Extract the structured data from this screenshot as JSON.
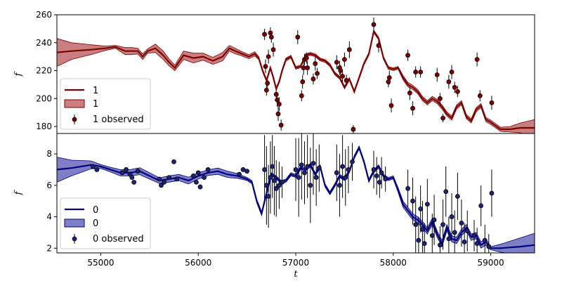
{
  "chart_data": [
    {
      "type": "line",
      "xlabel": "",
      "ylabel": "f",
      "xlim": [
        54550,
        59450
      ],
      "ylim": [
        175,
        260
      ],
      "y_ticks": [
        180,
        200,
        220,
        240,
        260
      ],
      "line_color": "#800000",
      "band_color": "#a52a2a",
      "point_color": "#800000",
      "legend": {
        "position": "lower-left",
        "line": "1",
        "band": "1",
        "points": "1 observed"
      },
      "series_model": {
        "name": "1",
        "x": [
          54550,
          54700,
          54900,
          55050,
          55150,
          55250,
          55320,
          55380,
          55430,
          55480,
          55560,
          55640,
          55700,
          55760,
          55850,
          55950,
          56050,
          56150,
          56250,
          56320,
          56380,
          56450,
          56520,
          56580,
          56620,
          56660,
          56700,
          56740,
          56770,
          56800,
          56830,
          56860,
          56900,
          56950,
          57000,
          57050,
          57100,
          57150,
          57200,
          57250,
          57300,
          57350,
          57400,
          57450,
          57500,
          57550,
          57600,
          57650,
          57700,
          57750,
          57800,
          57850,
          57900,
          57950,
          58000,
          58050,
          58100,
          58150,
          58200,
          58250,
          58300,
          58350,
          58400,
          58450,
          58500,
          58550,
          58600,
          58650,
          58700,
          58750,
          58800,
          58850,
          58900,
          58950,
          59000,
          59100,
          59200,
          59300,
          59450
        ],
        "y": [
          233,
          234,
          235,
          236,
          237,
          234,
          234,
          234,
          230,
          234,
          236,
          231,
          226,
          222,
          231,
          229,
          230,
          227,
          230,
          236,
          234,
          232,
          230,
          232,
          229,
          220,
          213,
          222,
          215,
          207,
          212,
          220,
          228,
          230,
          222,
          223,
          231,
          232,
          231,
          228,
          227,
          224,
          218,
          215,
          208,
          214,
          205,
          215,
          225,
          232,
          248,
          243,
          229,
          222,
          221,
          222,
          215,
          210,
          208,
          205,
          200,
          197,
          200,
          198,
          194,
          189,
          186,
          194,
          197,
          187,
          184,
          192,
          195,
          185,
          183,
          178,
          178,
          179,
          179
        ]
      },
      "band_halfwidth": [
        10,
        6,
        3.5,
        1.5,
        1,
        2.5,
        2.5,
        2,
        2,
        1.5,
        3,
        3,
        2.5,
        2,
        3,
        3.5,
        2.5,
        2.5,
        3,
        2,
        2,
        1.5,
        1.5,
        1.5,
        1,
        1,
        1,
        1,
        1,
        1,
        1,
        1,
        1,
        1,
        1,
        1,
        1,
        1,
        1,
        1,
        1,
        1,
        1,
        1,
        1,
        1,
        1,
        1,
        1,
        1,
        1,
        1,
        1,
        1,
        1,
        1,
        1.5,
        1.5,
        1.5,
        1.5,
        1.5,
        1.5,
        1.5,
        1.5,
        1.5,
        1.5,
        1.5,
        1.5,
        1.5,
        1.5,
        1.5,
        1.5,
        1.5,
        1.5,
        1.5,
        1.5,
        2,
        3.5,
        6
      ],
      "series_observed": {
        "name": "1 observed",
        "points": [
          [
            56680,
            246,
            4
          ],
          [
            56690,
            223,
            5
          ],
          [
            56700,
            206,
            4
          ],
          [
            56710,
            211,
            5
          ],
          [
            56720,
            230,
            5
          ],
          [
            56740,
            247,
            4
          ],
          [
            56750,
            244,
            4
          ],
          [
            56770,
            235,
            5
          ],
          [
            56800,
            203,
            4
          ],
          [
            56810,
            199,
            5
          ],
          [
            56820,
            189,
            5
          ],
          [
            56830,
            196,
            5
          ],
          [
            56850,
            181,
            4
          ],
          [
            57020,
            244,
            5
          ],
          [
            57060,
            202,
            4
          ],
          [
            57070,
            212,
            5
          ],
          [
            57080,
            222,
            5
          ],
          [
            57090,
            228,
            4
          ],
          [
            57110,
            229,
            4
          ],
          [
            57120,
            222,
            5
          ],
          [
            57180,
            214,
            4
          ],
          [
            57200,
            225,
            5
          ],
          [
            57220,
            218,
            4
          ],
          [
            57420,
            226,
            5
          ],
          [
            57450,
            222,
            5
          ],
          [
            57460,
            220,
            4
          ],
          [
            57480,
            216,
            4
          ],
          [
            57500,
            228,
            5
          ],
          [
            57520,
            213,
            4
          ],
          [
            57550,
            235,
            6
          ],
          [
            57590,
            178,
            3
          ],
          [
            57800,
            253,
            5
          ],
          [
            57850,
            238,
            5
          ],
          [
            57950,
            212,
            4
          ],
          [
            57960,
            215,
            5
          ],
          [
            57980,
            195,
            5
          ],
          [
            58150,
            231,
            4
          ],
          [
            58170,
            204,
            5
          ],
          [
            58200,
            193,
            5
          ],
          [
            58230,
            219,
            4
          ],
          [
            58280,
            219,
            4
          ],
          [
            58450,
            217,
            5
          ],
          [
            58480,
            200,
            4
          ],
          [
            58510,
            186,
            3
          ],
          [
            58570,
            212,
            5
          ],
          [
            58600,
            219,
            5
          ],
          [
            58630,
            208,
            4
          ],
          [
            58660,
            205,
            4
          ],
          [
            58860,
            228,
            5
          ],
          [
            58890,
            202,
            4
          ],
          [
            59010,
            197,
            5
          ]
        ]
      }
    },
    {
      "type": "line",
      "xlabel": "t",
      "ylabel": "f",
      "xlim": [
        54550,
        59450
      ],
      "ylim": [
        1.7,
        9.3
      ],
      "x_ticks": [
        55000,
        56000,
        57000,
        58000,
        59000
      ],
      "y_ticks": [
        2,
        4,
        6,
        8
      ],
      "line_color": "#000080",
      "band_color": "#00008b",
      "point_color": "#1a237e",
      "legend": {
        "position": "lower-left",
        "line": "0",
        "band": "0",
        "points": "0 observed"
      },
      "series_model": {
        "name": "0",
        "x": [
          54550,
          54700,
          54900,
          55000,
          55100,
          55200,
          55300,
          55400,
          55500,
          55600,
          55700,
          55800,
          55900,
          56000,
          56100,
          56200,
          56300,
          56400,
          56450,
          56500,
          56550,
          56600,
          56650,
          56700,
          56750,
          56800,
          56850,
          56900,
          56950,
          57000,
          57050,
          57100,
          57150,
          57200,
          57250,
          57300,
          57350,
          57400,
          57450,
          57500,
          57550,
          57600,
          57650,
          57700,
          57750,
          57800,
          57850,
          57900,
          57950,
          58000,
          58050,
          58100,
          58150,
          58200,
          58250,
          58300,
          58350,
          58400,
          58450,
          58500,
          58550,
          58600,
          58650,
          58700,
          58750,
          58800,
          58850,
          58900,
          58950,
          59000,
          59100,
          59200,
          59300,
          59450
        ],
        "y": [
          7.0,
          7.1,
          7.3,
          7.2,
          7.0,
          6.8,
          6.8,
          6.9,
          6.6,
          6.3,
          6.4,
          6.5,
          6.3,
          6.6,
          6.8,
          6.9,
          6.7,
          6.6,
          6.5,
          6.4,
          6.2,
          5.0,
          4.2,
          5.5,
          6.7,
          6.5,
          6.2,
          6.3,
          6.7,
          6.6,
          7.1,
          7.0,
          7.3,
          6.7,
          7.2,
          6.0,
          5.5,
          6.0,
          6.6,
          6.4,
          6.9,
          7.8,
          8.4,
          7.5,
          6.3,
          6.9,
          7.2,
          6.6,
          6.4,
          6.5,
          5.7,
          4.8,
          4.4,
          4.0,
          3.8,
          3.5,
          3.1,
          3.7,
          2.9,
          2.3,
          3.3,
          2.6,
          2.5,
          3.0,
          3.3,
          2.7,
          2.8,
          2.2,
          2.4,
          2.0,
          2.0,
          2.05,
          2.1,
          2.2
        ]
      },
      "band_halfwidth": [
        0.8,
        0.5,
        0.25,
        0.12,
        0.15,
        0.2,
        0.2,
        0.22,
        0.2,
        0.18,
        0.2,
        0.2,
        0.22,
        0.2,
        0.18,
        0.2,
        0.2,
        0.15,
        0.12,
        0.1,
        0.1,
        0.12,
        0.12,
        0.1,
        0.1,
        0.1,
        0.1,
        0.1,
        0.1,
        0.1,
        0.1,
        0.1,
        0.1,
        0.1,
        0.1,
        0.1,
        0.1,
        0.1,
        0.1,
        0.1,
        0.1,
        0.1,
        0.1,
        0.1,
        0.1,
        0.1,
        0.1,
        0.1,
        0.1,
        0.1,
        0.15,
        0.2,
        0.2,
        0.2,
        0.2,
        0.2,
        0.2,
        0.2,
        0.2,
        0.2,
        0.2,
        0.2,
        0.2,
        0.2,
        0.2,
        0.2,
        0.2,
        0.2,
        0.2,
        0.1,
        0.25,
        0.4,
        0.55,
        0.75
      ],
      "series_observed": {
        "name": "0 observed",
        "points": [
          [
            54920,
            7.2,
            0.12
          ],
          [
            54960,
            7.0,
            0.12
          ],
          [
            55220,
            6.8,
            0.12
          ],
          [
            55260,
            7.0,
            0.12
          ],
          [
            55300,
            6.7,
            0.12
          ],
          [
            55320,
            6.5,
            0.12
          ],
          [
            55340,
            6.2,
            0.12
          ],
          [
            55380,
            6.9,
            0.12
          ],
          [
            55600,
            6.4,
            0.12
          ],
          [
            55620,
            6.0,
            0.12
          ],
          [
            55650,
            6.2,
            0.12
          ],
          [
            55700,
            6.5,
            0.12
          ],
          [
            55750,
            7.5,
            0.15
          ],
          [
            55780,
            6.4,
            0.12
          ],
          [
            55950,
            6.6,
            0.12
          ],
          [
            55980,
            6.2,
            0.12
          ],
          [
            56000,
            6.8,
            0.12
          ],
          [
            56020,
            5.9,
            0.12
          ],
          [
            56060,
            6.5,
            0.12
          ],
          [
            56100,
            7.0,
            0.12
          ],
          [
            56420,
            6.7,
            0.12
          ],
          [
            56460,
            7.0,
            0.12
          ],
          [
            56500,
            6.9,
            0.12
          ],
          [
            56680,
            7.0,
            2.2
          ],
          [
            56700,
            6.0,
            2.5
          ],
          [
            56720,
            5.3,
            2.0
          ],
          [
            56740,
            6.5,
            2.3
          ],
          [
            56760,
            7.2,
            2.0
          ],
          [
            56780,
            6.3,
            2.2
          ],
          [
            56800,
            5.8,
            1.8
          ],
          [
            56830,
            6.0,
            1.5
          ],
          [
            56860,
            6.2,
            1.0
          ],
          [
            57000,
            7.0,
            2.0
          ],
          [
            57030,
            6.5,
            2.5
          ],
          [
            57060,
            7.3,
            2.2
          ],
          [
            57090,
            6.8,
            2.0
          ],
          [
            57120,
            7.2,
            2.0
          ],
          [
            57150,
            6.0,
            2.4
          ],
          [
            57180,
            7.4,
            2.0
          ],
          [
            57210,
            6.5,
            1.8
          ],
          [
            57240,
            7.1,
            1.5
          ],
          [
            57420,
            6.8,
            1.8
          ],
          [
            57450,
            6.0,
            2.0
          ],
          [
            57480,
            7.2,
            2.0
          ],
          [
            57510,
            6.5,
            1.8
          ],
          [
            57540,
            7.0,
            1.5
          ],
          [
            57580,
            7.5,
            1.2
          ],
          [
            57800,
            7.0,
            1.2
          ],
          [
            57830,
            6.6,
            1.2
          ],
          [
            57860,
            6.2,
            1.0
          ],
          [
            57880,
            6.8,
            1.0
          ],
          [
            57920,
            6.4,
            0.8
          ],
          [
            58150,
            5.8,
            1.2
          ],
          [
            58200,
            5.0,
            1.5
          ],
          [
            58230,
            3.5,
            1.8
          ],
          [
            58260,
            2.5,
            1.5
          ],
          [
            58280,
            4.5,
            1.5
          ],
          [
            58300,
            3.2,
            1.8
          ],
          [
            58320,
            2.3,
            1.3
          ],
          [
            58350,
            4.8,
            1.6
          ],
          [
            58400,
            2.8,
            1.4
          ],
          [
            58420,
            3.8,
            1.6
          ],
          [
            58480,
            2.2,
            1.2
          ],
          [
            58510,
            3.5,
            1.6
          ],
          [
            58540,
            5.6,
            1.6
          ],
          [
            58570,
            2.6,
            1.4
          ],
          [
            58600,
            4.0,
            1.5
          ],
          [
            58630,
            3.0,
            1.4
          ],
          [
            58660,
            5.3,
            1.5
          ],
          [
            58700,
            3.6,
            1.5
          ],
          [
            58730,
            2.4,
            1.2
          ],
          [
            58760,
            3.1,
            1.3
          ],
          [
            58830,
            2.8,
            1.0
          ],
          [
            58860,
            2.3,
            1.0
          ],
          [
            58900,
            4.7,
            1.3
          ],
          [
            58940,
            2.5,
            1.0
          ],
          [
            58980,
            2.1,
            0.8
          ],
          [
            59010,
            5.5,
            1.5
          ]
        ]
      }
    }
  ]
}
